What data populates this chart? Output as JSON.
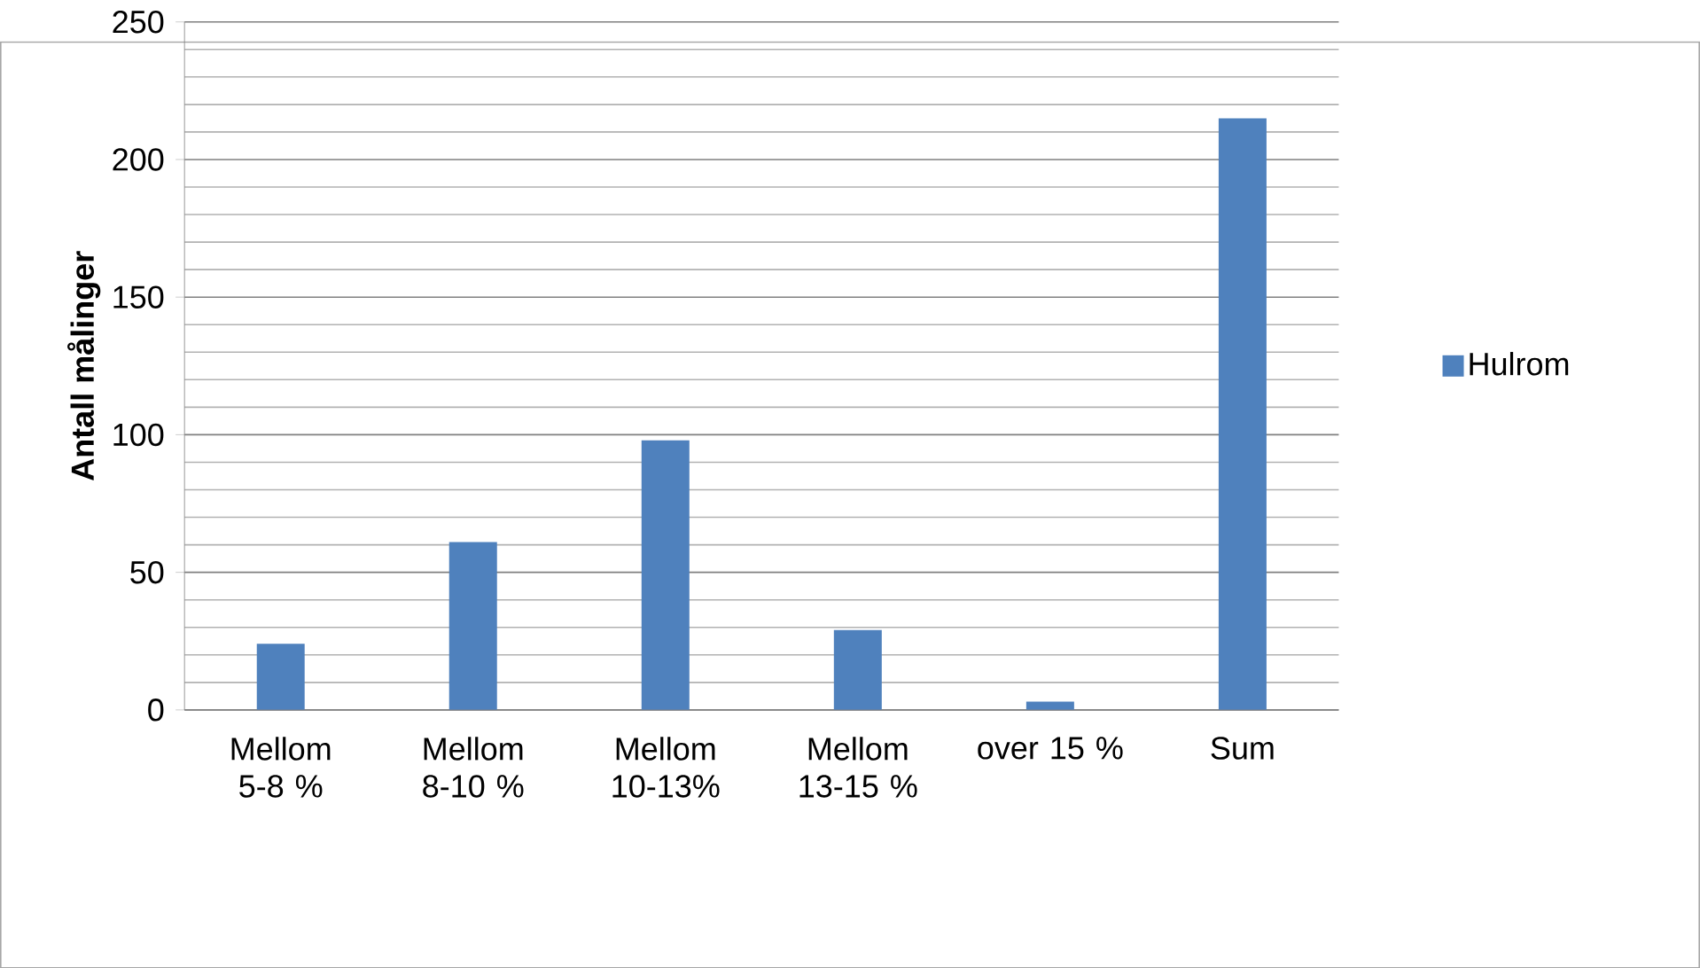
{
  "chart_data": {
    "type": "bar",
    "ylabel": "Antall målinger",
    "categories": [
      "Mellom 5-8 %",
      "Mellom 8-10 %",
      "Mellom 10-13%",
      "Mellom 13-15 %",
      "over 15 %",
      "Sum"
    ],
    "series": [
      {
        "name": "Hulrom",
        "color": "#4f81bd",
        "values": [
          24,
          61,
          98,
          29,
          3,
          215
        ]
      }
    ],
    "ylim": [
      0,
      250
    ],
    "yticks": [
      0,
      50,
      100,
      150,
      200,
      250
    ],
    "grid": "y",
    "legend": "right"
  }
}
